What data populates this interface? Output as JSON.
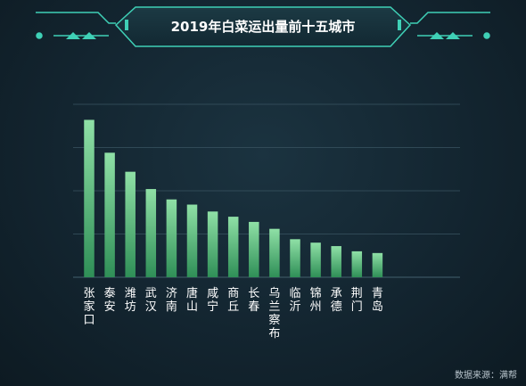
{
  "chart_data": {
    "type": "bar",
    "title": "2019年白菜运出量前十五城市",
    "categories": [
      "张家口",
      "泰安",
      "潍坊",
      "武汉",
      "济南",
      "唐山",
      "咸宁",
      "商丘",
      "长春",
      "乌兰察布",
      "临沂",
      "锦州",
      "承德",
      "荆门",
      "青岛"
    ],
    "values": [
      91,
      72,
      61,
      51,
      45,
      42,
      38,
      35,
      32,
      28,
      22,
      20,
      18,
      15,
      14
    ],
    "ylim": [
      0,
      100
    ],
    "grid": true,
    "source": "数据来源：满帮",
    "colors": {
      "bar_top": "#8fe0a6",
      "bar_bottom": "#2f8f57",
      "grid": "#3a5562",
      "frame": "#3fd0b6"
    }
  }
}
